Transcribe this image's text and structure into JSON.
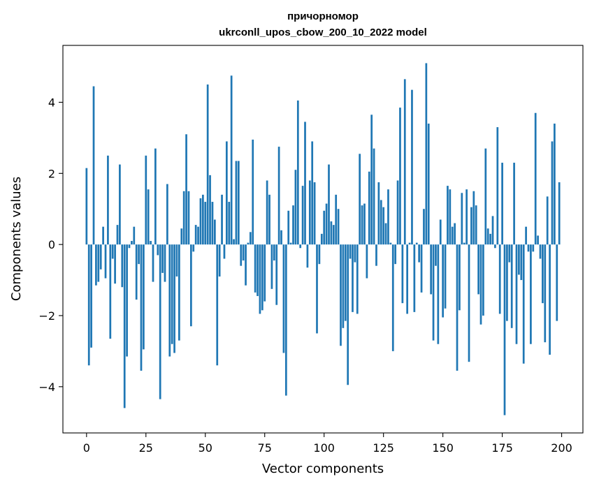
{
  "chart_data": {
    "type": "bar",
    "title": "причорномор",
    "subtitle": "ukrconll_upos_cbow_200_10_2022 model",
    "xlabel": "Vector components",
    "ylabel": "Components values",
    "xlim": [
      -9.95,
      208.95
    ],
    "ylim": [
      -5.3,
      5.6
    ],
    "xticks": [
      0,
      25,
      50,
      75,
      100,
      125,
      150,
      175,
      200
    ],
    "yticks": [
      -4,
      -2,
      0,
      2,
      4
    ],
    "xtick_labels": [
      "0",
      "25",
      "50",
      "75",
      "100",
      "125",
      "150",
      "175",
      "200"
    ],
    "ytick_labels": [
      "−4",
      "−2",
      "0",
      "2",
      "4"
    ],
    "grid": false,
    "bar_color": "#1f77b4",
    "x": [
      0,
      1,
      2,
      3,
      4,
      5,
      6,
      7,
      8,
      9,
      10,
      11,
      12,
      13,
      14,
      15,
      16,
      17,
      18,
      19,
      20,
      21,
      22,
      23,
      24,
      25,
      26,
      27,
      28,
      29,
      30,
      31,
      32,
      33,
      34,
      35,
      36,
      37,
      38,
      39,
      40,
      41,
      42,
      43,
      44,
      45,
      46,
      47,
      48,
      49,
      50,
      51,
      52,
      53,
      54,
      55,
      56,
      57,
      58,
      59,
      60,
      61,
      62,
      63,
      64,
      65,
      66,
      67,
      68,
      69,
      70,
      71,
      72,
      73,
      74,
      75,
      76,
      77,
      78,
      79,
      80,
      81,
      82,
      83,
      84,
      85,
      86,
      87,
      88,
      89,
      90,
      91,
      92,
      93,
      94,
      95,
      96,
      97,
      98,
      99,
      100,
      101,
      102,
      103,
      104,
      105,
      106,
      107,
      108,
      109,
      110,
      111,
      112,
      113,
      114,
      115,
      116,
      117,
      118,
      119,
      120,
      121,
      122,
      123,
      124,
      125,
      126,
      127,
      128,
      129,
      130,
      131,
      132,
      133,
      134,
      135,
      136,
      137,
      138,
      139,
      140,
      141,
      142,
      143,
      144,
      145,
      146,
      147,
      148,
      149,
      150,
      151,
      152,
      153,
      154,
      155,
      156,
      157,
      158,
      159,
      160,
      161,
      162,
      163,
      164,
      165,
      166,
      167,
      168,
      169,
      170,
      171,
      172,
      173,
      174,
      175,
      176,
      177,
      178,
      179,
      180,
      181,
      182,
      183,
      184,
      185,
      186,
      187,
      188,
      189,
      190,
      191,
      192,
      193,
      194,
      195,
      196,
      197,
      198,
      199
    ],
    "values": [
      2.15,
      -3.4,
      -2.9,
      4.45,
      -1.15,
      -1.05,
      -0.7,
      0.5,
      -0.95,
      2.5,
      -2.65,
      -0.4,
      -1.1,
      0.55,
      2.25,
      -1.2,
      -4.6,
      -3.15,
      -0.1,
      0.1,
      0.5,
      -1.55,
      -0.55,
      -3.55,
      -2.95,
      2.5,
      1.55,
      0.1,
      -1.05,
      2.7,
      -0.3,
      -4.35,
      -0.8,
      -1.05,
      1.7,
      -3.15,
      -2.8,
      -3.05,
      -0.9,
      -2.7,
      0.45,
      1.5,
      3.1,
      1.5,
      -2.3,
      -0.2,
      0.55,
      0.5,
      1.3,
      1.4,
      1.2,
      4.5,
      1.95,
      1.2,
      0.7,
      -3.4,
      -0.9,
      1.4,
      -0.4,
      2.9,
      1.2,
      4.75,
      0.15,
      2.35,
      2.35,
      -0.6,
      -0.45,
      -1.15,
      0.05,
      0.35,
      2.95,
      -1.35,
      -1.45,
      -1.95,
      -1.85,
      -1.6,
      1.8,
      1.4,
      -1.25,
      -0.45,
      -1.7,
      2.75,
      0.4,
      -3.05,
      -4.25,
      0.95,
      0.05,
      1.1,
      2.1,
      4.05,
      -0.1,
      1.65,
      3.45,
      -0.65,
      1.8,
      2.9,
      1.75,
      -2.5,
      -0.55,
      0.3,
      0.95,
      1.15,
      2.25,
      0.65,
      0.55,
      1.4,
      1.0,
      -2.85,
      -2.35,
      -2.15,
      -3.95,
      -0.4,
      -1.9,
      -0.5,
      -1.95,
      2.55,
      1.1,
      1.15,
      -0.95,
      2.05,
      3.65,
      2.7,
      -0.6,
      1.75,
      1.25,
      1.05,
      0.6,
      1.55,
      0.05,
      -3.0,
      -0.55,
      1.8,
      3.85,
      -1.65,
      4.65,
      -1.95,
      0.05,
      4.35,
      -1.9,
      0.05,
      -0.5,
      -1.35,
      1.0,
      5.1,
      3.4,
      -1.4,
      -2.7,
      -0.6,
      -2.8,
      0.7,
      -2.05,
      -1.8,
      1.65,
      1.55,
      0.5,
      0.6,
      -3.55,
      -1.85,
      1.45,
      0.05,
      1.55,
      -3.3,
      1.05,
      1.5,
      1.1,
      -1.4,
      -2.25,
      -2.0,
      2.7,
      0.45,
      0.3,
      0.8,
      -0.1,
      3.3,
      -1.95,
      2.3,
      -4.8,
      -2.15,
      -0.5,
      -2.35,
      2.3,
      -2.8,
      -0.85,
      -1.0,
      -3.35,
      0.5,
      -0.2,
      -2.8,
      -0.2,
      3.7,
      0.25,
      -0.4,
      -1.65,
      -2.75,
      1.35,
      -3.1,
      2.9,
      3.4,
      -2.15,
      1.75
    ]
  }
}
